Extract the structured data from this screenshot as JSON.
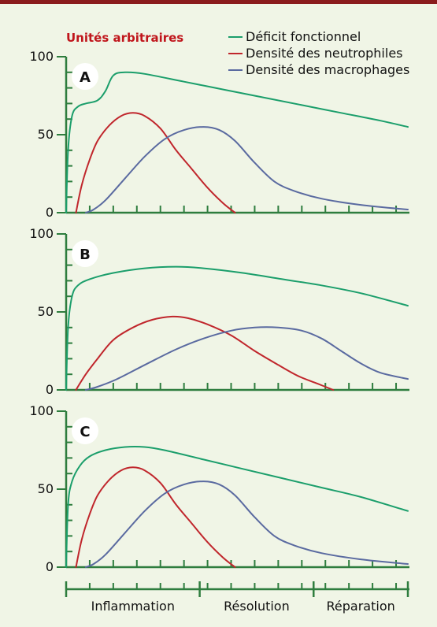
{
  "unit_label": "Unités arbitraires",
  "colors": {
    "background": "#f0f5e6",
    "top_bar": "#8a1c1c",
    "axis": "#2e7d3e",
    "unit_label": "#c0161c"
  },
  "chart_data": [
    {
      "type": "line",
      "panel": "A",
      "x_unit": "arbitrary time",
      "ylim": [
        0,
        100
      ],
      "yticks": [
        "0",
        "50",
        "100"
      ],
      "series": [
        {
          "name": "Déficit fonctionnel",
          "color": "#1b9e6b",
          "points": [
            [
              0,
              0
            ],
            [
              1,
              40
            ],
            [
              3,
              62
            ],
            [
              6,
              68
            ],
            [
              10,
              70
            ],
            [
              16,
              72
            ],
            [
              20,
              78
            ],
            [
              24,
              88
            ],
            [
              30,
              90
            ],
            [
              40,
              89
            ],
            [
              60,
              84
            ],
            [
              80,
              79
            ],
            [
              100,
              74
            ],
            [
              120,
              69
            ],
            [
              140,
              64
            ],
            [
              160,
              59
            ],
            [
              174,
              55
            ]
          ]
        },
        {
          "name": "Densité des neutrophiles",
          "color": "#c0262c",
          "points": [
            [
              5,
              0
            ],
            [
              8,
              18
            ],
            [
              12,
              34
            ],
            [
              16,
              46
            ],
            [
              22,
              56
            ],
            [
              28,
              62
            ],
            [
              34,
              64
            ],
            [
              40,
              62
            ],
            [
              48,
              54
            ],
            [
              56,
              40
            ],
            [
              64,
              28
            ],
            [
              72,
              16
            ],
            [
              80,
              6
            ],
            [
              86,
              0
            ]
          ]
        },
        {
          "name": "Densité des macrophages",
          "color": "#5a6aa0",
          "points": [
            [
              10,
              0
            ],
            [
              14,
              2
            ],
            [
              20,
              8
            ],
            [
              30,
              22
            ],
            [
              40,
              36
            ],
            [
              50,
              47
            ],
            [
              60,
              53
            ],
            [
              70,
              55
            ],
            [
              78,
              53
            ],
            [
              86,
              46
            ],
            [
              96,
              32
            ],
            [
              106,
              20
            ],
            [
              116,
              14
            ],
            [
              130,
              9
            ],
            [
              150,
              5
            ],
            [
              174,
              2
            ]
          ]
        }
      ]
    },
    {
      "type": "line",
      "panel": "B",
      "x_unit": "arbitrary time",
      "ylim": [
        0,
        100
      ],
      "yticks": [
        "0",
        "50",
        "100"
      ],
      "series": [
        {
          "name": "Déficit fonctionnel",
          "color": "#1b9e6b",
          "points": [
            [
              0,
              0
            ],
            [
              1,
              40
            ],
            [
              3,
              60
            ],
            [
              6,
              67
            ],
            [
              12,
              71
            ],
            [
              24,
              75
            ],
            [
              40,
              78
            ],
            [
              56,
              79
            ],
            [
              70,
              78
            ],
            [
              90,
              75
            ],
            [
              110,
              71
            ],
            [
              130,
              67
            ],
            [
              150,
              62
            ],
            [
              174,
              54
            ]
          ]
        },
        {
          "name": "Densité des neutrophiles",
          "color": "#c0262c",
          "points": [
            [
              5,
              0
            ],
            [
              10,
              10
            ],
            [
              16,
              20
            ],
            [
              24,
              32
            ],
            [
              34,
              40
            ],
            [
              44,
              45
            ],
            [
              54,
              47
            ],
            [
              62,
              46
            ],
            [
              72,
              42
            ],
            [
              84,
              35
            ],
            [
              96,
              25
            ],
            [
              108,
              16
            ],
            [
              118,
              9
            ],
            [
              128,
              4
            ],
            [
              136,
              0
            ]
          ]
        },
        {
          "name": "Densité des macrophages",
          "color": "#5a6aa0",
          "points": [
            [
              10,
              0
            ],
            [
              16,
              2
            ],
            [
              26,
              7
            ],
            [
              40,
              16
            ],
            [
              56,
              26
            ],
            [
              70,
              33
            ],
            [
              84,
              38
            ],
            [
              96,
              40
            ],
            [
              108,
              40
            ],
            [
              120,
              38
            ],
            [
              130,
              33
            ],
            [
              140,
              25
            ],
            [
              150,
              17
            ],
            [
              160,
              11
            ],
            [
              174,
              7
            ]
          ]
        }
      ]
    },
    {
      "type": "line",
      "panel": "C",
      "x_unit": "arbitrary time",
      "ylim": [
        0,
        100
      ],
      "yticks": [
        "0",
        "50",
        "100"
      ],
      "series": [
        {
          "name": "Déficit fonctionnel",
          "color": "#1b9e6b",
          "points": [
            [
              0,
              0
            ],
            [
              1,
              40
            ],
            [
              3,
              55
            ],
            [
              7,
              65
            ],
            [
              12,
              71
            ],
            [
              20,
              75
            ],
            [
              30,
              77
            ],
            [
              40,
              77
            ],
            [
              50,
              75
            ],
            [
              70,
              69
            ],
            [
              90,
              63
            ],
            [
              110,
              57
            ],
            [
              130,
              51
            ],
            [
              150,
              45
            ],
            [
              174,
              36
            ]
          ]
        },
        {
          "name": "Densité des neutrophiles",
          "color": "#c0262c",
          "points": [
            [
              5,
              0
            ],
            [
              8,
              18
            ],
            [
              12,
              34
            ],
            [
              16,
              46
            ],
            [
              22,
              56
            ],
            [
              28,
              62
            ],
            [
              34,
              64
            ],
            [
              40,
              62
            ],
            [
              48,
              54
            ],
            [
              56,
              40
            ],
            [
              64,
              28
            ],
            [
              72,
              16
            ],
            [
              80,
              6
            ],
            [
              86,
              0
            ]
          ]
        },
        {
          "name": "Densité des macrophages",
          "color": "#5a6aa0",
          "points": [
            [
              10,
              0
            ],
            [
              14,
              2
            ],
            [
              20,
              8
            ],
            [
              30,
              22
            ],
            [
              40,
              36
            ],
            [
              50,
              47
            ],
            [
              60,
              53
            ],
            [
              70,
              55
            ],
            [
              78,
              53
            ],
            [
              86,
              46
            ],
            [
              96,
              32
            ],
            [
              106,
              20
            ],
            [
              116,
              14
            ],
            [
              130,
              9
            ],
            [
              150,
              5
            ],
            [
              174,
              2
            ]
          ]
        }
      ]
    }
  ],
  "legend": [
    {
      "label": "Déficit fonctionnel",
      "color": "#1b9e6b"
    },
    {
      "label": "Densité des neutrophiles",
      "color": "#c0262c"
    },
    {
      "label": "Densité des macrophages",
      "color": "#5a6aa0"
    }
  ],
  "phases": [
    {
      "label": "Inflammation",
      "start": 0,
      "end": 68
    },
    {
      "label": "Résolution",
      "start": 68,
      "end": 126
    },
    {
      "label": "Réparation",
      "start": 126,
      "end": 174
    }
  ]
}
